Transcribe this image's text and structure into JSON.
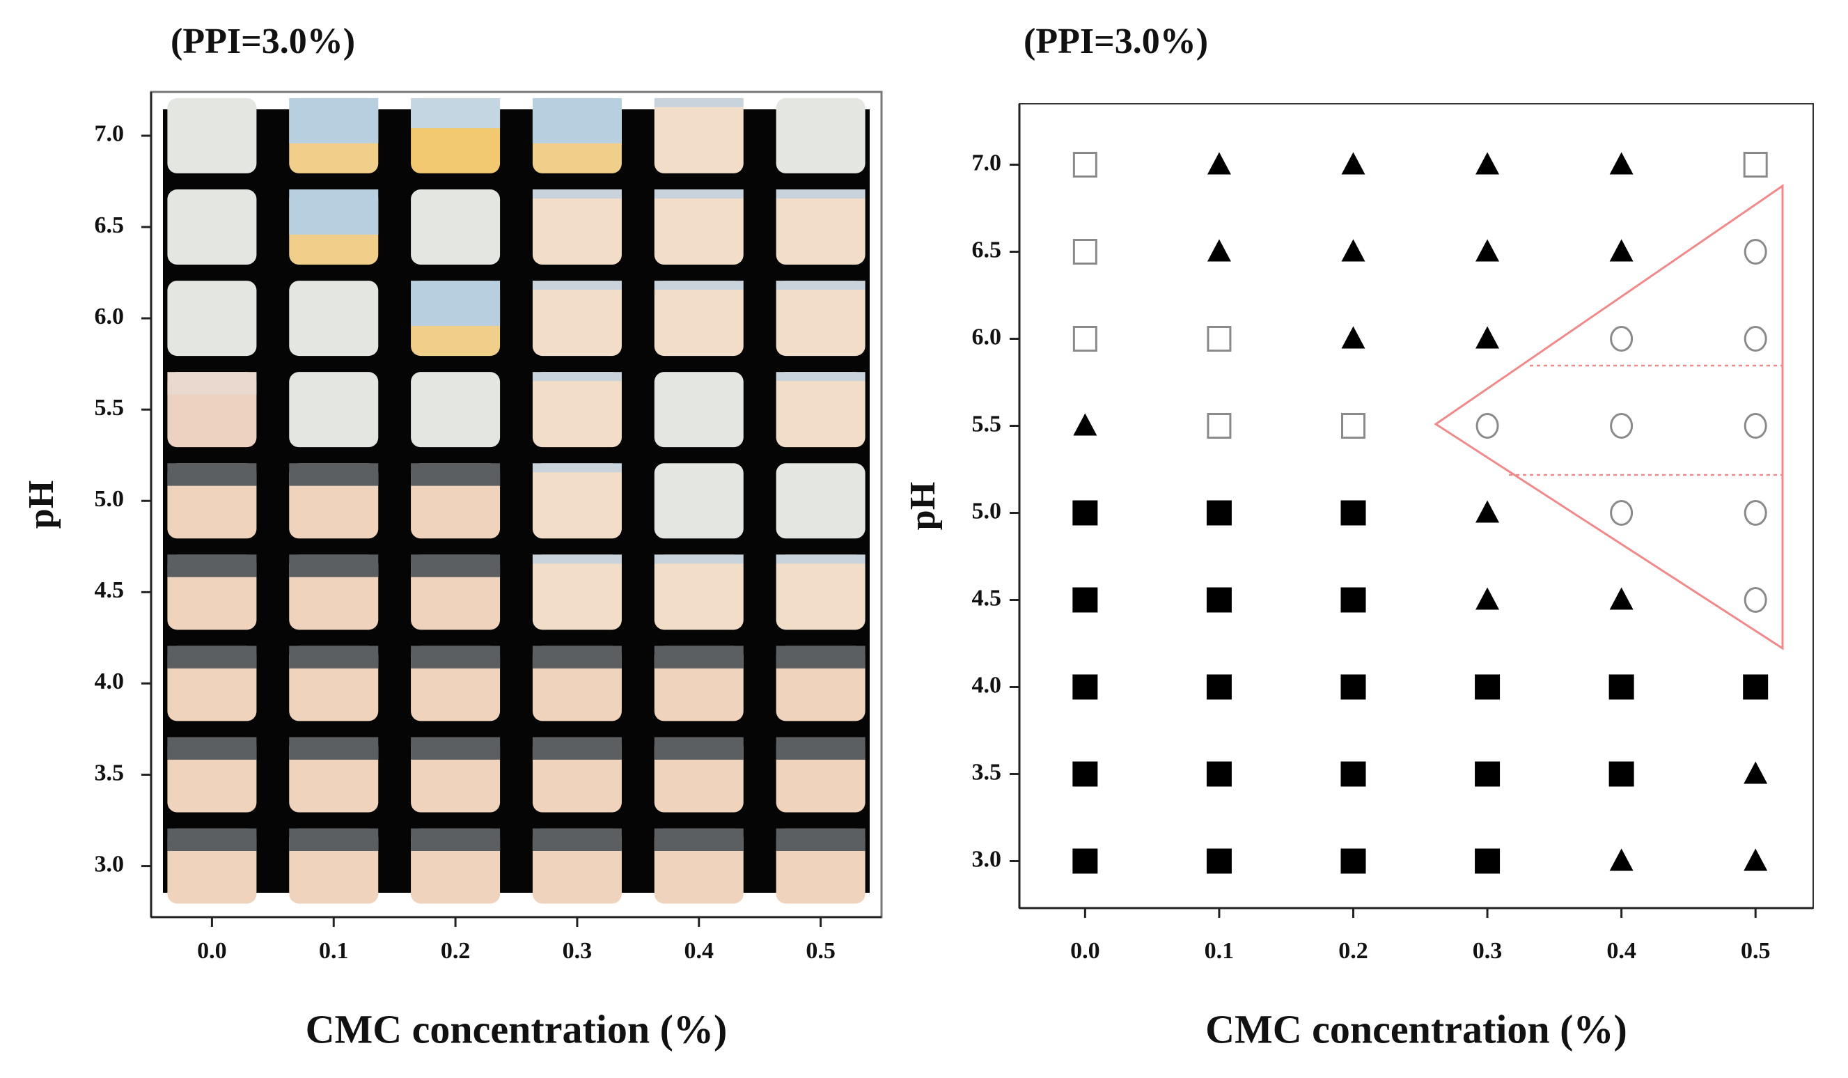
{
  "chart_data": [
    {
      "type": "photo-grid",
      "title": "(PPI=3.0%)",
      "xlabel": "CMC concentration (%)",
      "ylabel": "pH",
      "xlim": [
        -0.05,
        0.55
      ],
      "ylim": [
        2.72,
        7.24
      ],
      "xticks": [
        {
          "value": 0,
          "label": "0.0"
        },
        0.1,
        0.2,
        0.3,
        0.4,
        0.5
      ],
      "yticks": [
        {
          "value": 3,
          "label": "3.0"
        },
        3.5,
        {
          "value": 4,
          "label": "4.0"
        },
        4.5,
        {
          "value": 5,
          "label": "5.0"
        },
        5.5,
        {
          "value": 6,
          "label": "6.0"
        },
        6.5,
        {
          "value": 7,
          "label": "7.0"
        }
      ]
    },
    {
      "type": "scatter",
      "title": "(PPI=3.0%)",
      "xlabel": "CMC concentration (%)",
      "ylabel": "pH",
      "xlim": [
        -0.049,
        0.543
      ],
      "ylim": [
        2.73,
        7.35
      ],
      "xticks": [
        {
          "value": 0,
          "label": "0.0"
        },
        0.1,
        0.2,
        0.3,
        0.4,
        0.5
      ],
      "yticks": [
        {
          "value": 3,
          "label": "3.0"
        },
        3.5,
        {
          "value": 4,
          "label": "4.0"
        },
        4.5,
        {
          "value": 5,
          "label": "5.0"
        },
        5.5,
        {
          "value": 6,
          "label": "6.0"
        },
        6.5,
        {
          "value": 7,
          "label": "7.0"
        }
      ],
      "series": [
        {
          "marker": "open-square",
          "color": "#8a8a8a",
          "x": [
            0,
            0.5,
            0,
            0,
            0.1,
            0.1,
            0.2
          ],
          "y": [
            7,
            7,
            6.5,
            6,
            6,
            5.5,
            5.5
          ]
        },
        {
          "marker": "triangle",
          "color": "#000000",
          "x": [
            0.1,
            0.2,
            0.3,
            0.4,
            0.1,
            0.2,
            0.3,
            0.4,
            0.2,
            0.3,
            0,
            0.3,
            0.3,
            0.4,
            0.5,
            0.4,
            0.5
          ],
          "y": [
            7,
            7,
            7,
            7,
            6.5,
            6.5,
            6.5,
            6.5,
            6,
            6,
            5.5,
            5,
            4.5,
            4.5,
            3.5,
            3,
            3
          ]
        },
        {
          "marker": "open-circle",
          "color": "#8a8a8a",
          "x": [
            0.5,
            0.4,
            0.5,
            0.3,
            0.4,
            0.5,
            0.4,
            0.5,
            0.5
          ],
          "y": [
            6.5,
            6,
            6,
            5.5,
            5.5,
            5.5,
            5,
            5,
            4.5
          ]
        },
        {
          "marker": "square",
          "color": "#000000",
          "x": [
            0,
            0.1,
            0.2,
            0,
            0.1,
            0.2,
            0,
            0.1,
            0.2,
            0.3,
            0.4,
            0.5,
            0,
            0.1,
            0.2,
            0.3,
            0.4,
            0,
            0.1,
            0.2,
            0.3
          ],
          "y": [
            5,
            5,
            5,
            4.5,
            4.5,
            4.5,
            4,
            4,
            4,
            4,
            4,
            4,
            3.5,
            3.5,
            3.5,
            3.5,
            3.5,
            3,
            3,
            3,
            3
          ]
        }
      ]
    }
  ]
}
